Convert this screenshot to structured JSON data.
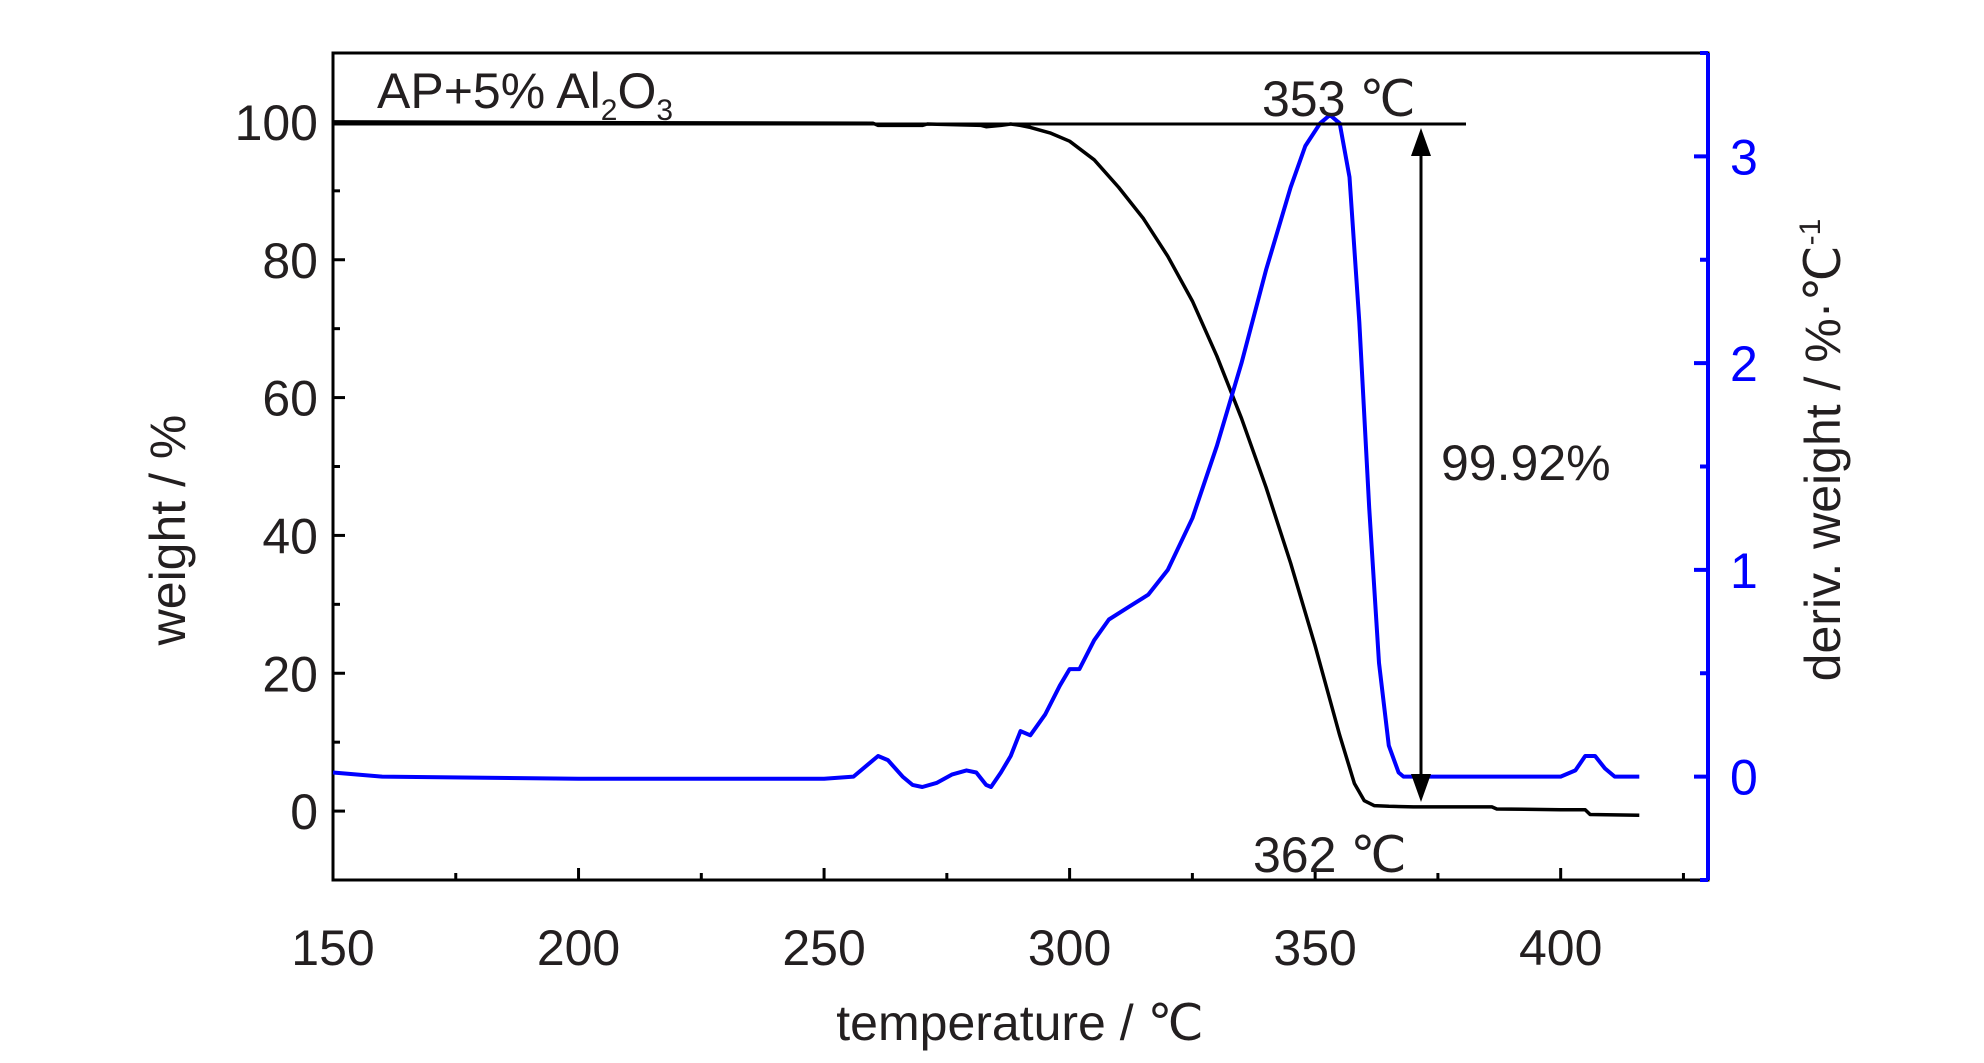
{
  "chart_data": {
    "type": "line",
    "xlabel": "temperature / ℃",
    "ylabel_left": "weight / %",
    "ylabel_right": "deriv. weight / %·℃",
    "ylabel_right_sup": "-1",
    "xlim": [
      150,
      430
    ],
    "ylim_left": [
      -10,
      110
    ],
    "ylim_right": [
      -0.5,
      3.5
    ],
    "x_ticks": [
      150,
      200,
      250,
      300,
      350,
      400
    ],
    "y_left_ticks": [
      0,
      20,
      40,
      60,
      80,
      100
    ],
    "y_right_ticks": [
      0,
      1,
      2,
      3
    ],
    "grid": false,
    "sample_label": {
      "prefix": "AP+5% Al",
      "sub1": "2",
      "mid": "O",
      "sub2": "3"
    },
    "annotations": {
      "peak": "353  ℃",
      "end": "362  ℃",
      "loss": "99.92%"
    },
    "colors": {
      "weight": "#000000",
      "deriv": "#0000ff"
    },
    "series": [
      {
        "axis": "left",
        "x": [
          150,
          200,
          260,
          261,
          270,
          271,
          282,
          283,
          286,
          288,
          290,
          292,
          294,
          296,
          300,
          305,
          310,
          315,
          320,
          325,
          330,
          335,
          340,
          345,
          350,
          355,
          358,
          360,
          362,
          365,
          370,
          380,
          386,
          387,
          400,
          405,
          406,
          416
        ],
        "y": [
          100,
          99.9,
          99.8,
          99.5,
          99.5,
          99.7,
          99.5,
          99.3,
          99.5,
          99.7,
          99.5,
          99.2,
          98.8,
          98.4,
          97.2,
          94.5,
          90.5,
          86,
          80.5,
          74,
          66,
          57,
          47,
          36,
          24,
          11,
          4,
          1.5,
          0.8,
          0.7,
          0.6,
          0.6,
          0.6,
          0.3,
          0.2,
          0.2,
          -0.5,
          -0.6
        ]
      },
      {
        "axis": "right",
        "x": [
          150,
          160,
          200,
          250,
          256,
          259,
          261,
          263,
          266,
          268,
          270,
          273,
          276,
          279,
          281,
          283,
          284,
          286,
          288,
          290,
          292,
          295,
          298,
          300,
          302,
          305,
          308,
          312,
          316,
          320,
          325,
          330,
          335,
          340,
          345,
          348,
          351,
          353,
          355,
          357,
          359,
          361,
          363,
          365,
          367,
          368,
          370,
          380,
          400,
          403,
          405,
          407,
          409,
          411,
          416
        ],
        "y": [
          0.02,
          0.0,
          -0.01,
          -0.01,
          0.0,
          0.06,
          0.1,
          0.08,
          0.0,
          -0.04,
          -0.05,
          -0.03,
          0.01,
          0.03,
          0.02,
          -0.04,
          -0.05,
          0.02,
          0.1,
          0.22,
          0.2,
          0.3,
          0.44,
          0.52,
          0.52,
          0.66,
          0.76,
          0.82,
          0.88,
          1.0,
          1.25,
          1.6,
          2.0,
          2.45,
          2.85,
          3.05,
          3.16,
          3.2,
          3.16,
          2.9,
          2.2,
          1.3,
          0.55,
          0.15,
          0.02,
          0.0,
          0.0,
          0.0,
          0.0,
          0.03,
          0.1,
          0.1,
          0.04,
          0.0,
          0.0
        ]
      }
    ]
  }
}
